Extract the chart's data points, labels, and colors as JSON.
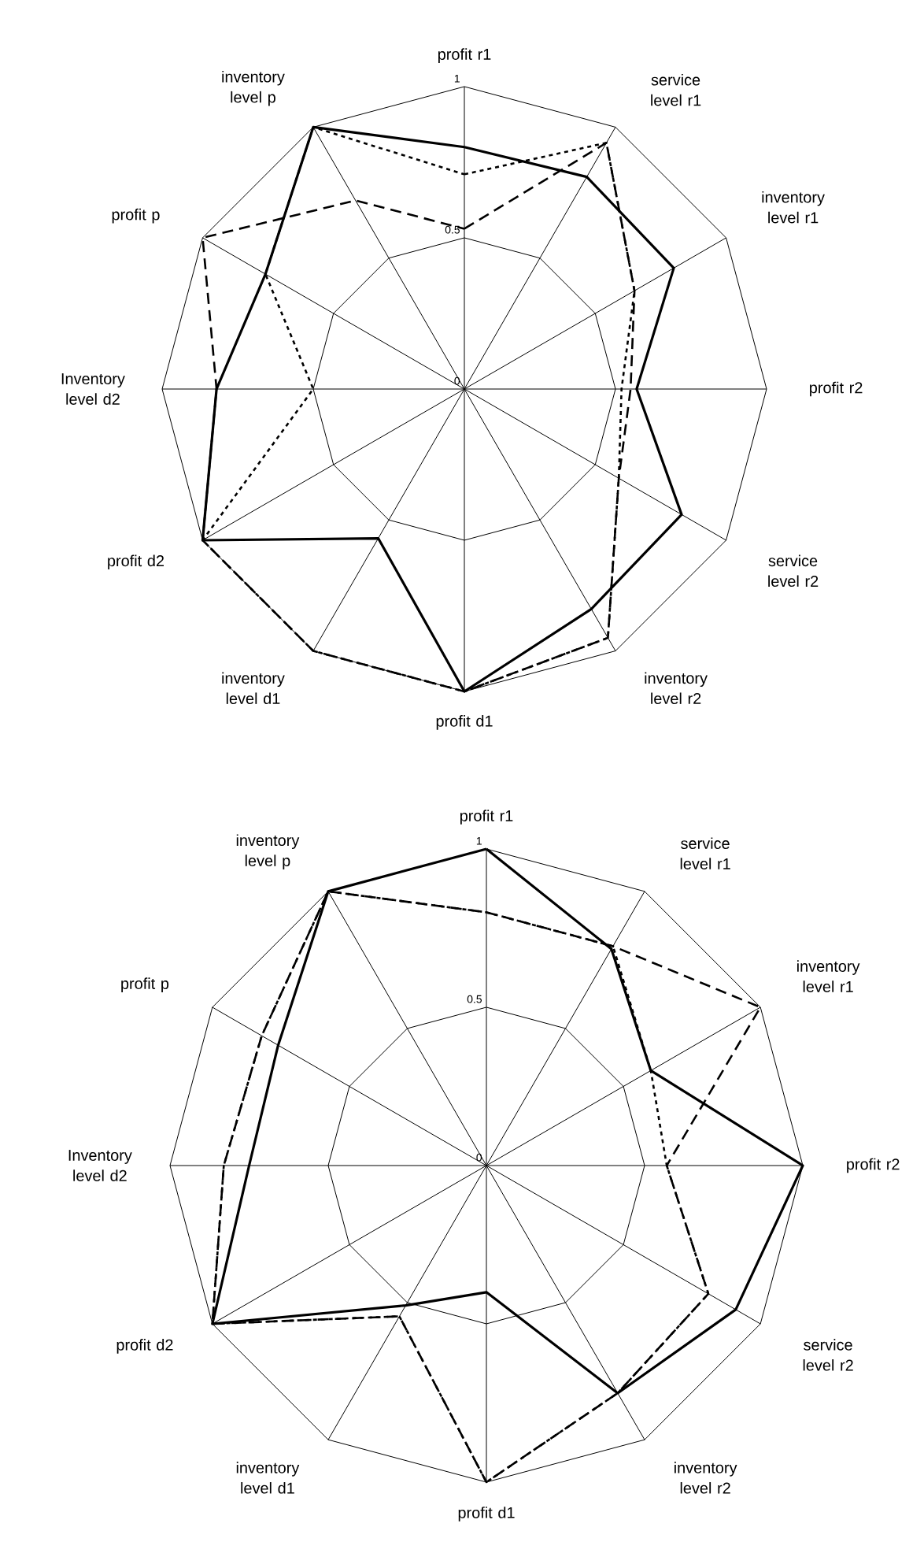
{
  "chart_data": [
    {
      "type": "radar",
      "categories": [
        "profit r1",
        "service level r1",
        "inventory level r1",
        "profit r2",
        "service level r2",
        "inventory level r2",
        "profit d1",
        "inventory level d1",
        "profit d2",
        "Inventory level d2",
        "profit p",
        "inventory level p"
      ],
      "ylim": [
        0,
        1
      ],
      "yticks": [
        0,
        0.5,
        1
      ],
      "grid": true,
      "series": [
        {
          "color": "#000000",
          "line_style": "solid",
          "values": [
            0.8,
            0.81,
            0.8,
            0.57,
            0.83,
            0.84,
            1.0,
            0.57,
            1.0,
            0.82,
            0.76,
            1.0
          ]
        },
        {
          "color": "#000000",
          "line_style": "dashed",
          "values": [
            0.53,
            0.94,
            0.65,
            0.55,
            0.59,
            0.95,
            1.0,
            1.0,
            1.0,
            0.82,
            1.0,
            0.72
          ]
        },
        {
          "color": "#000000",
          "line_style": "dotted",
          "values": [
            0.71,
            0.94,
            0.65,
            0.52,
            0.59,
            0.95,
            1.0,
            1.0,
            1.0,
            0.5,
            0.76,
            1.0
          ]
        }
      ]
    },
    {
      "type": "radar",
      "categories": [
        "profit r1",
        "service level r1",
        "inventory level r1",
        "profit r2",
        "service level r2",
        "inventory level r2",
        "profit d1",
        "inventory level d1",
        "profit d2",
        "Inventory level d2",
        "profit p",
        "inventory level p"
      ],
      "ylim": [
        0,
        1
      ],
      "yticks": [
        0,
        0.5,
        1
      ],
      "grid": true,
      "series": [
        {
          "color": "#000000",
          "line_style": "solid",
          "values": [
            1.0,
            0.79,
            0.6,
            1.0,
            0.91,
            0.83,
            0.4,
            0.51,
            1.0,
            0.75,
            0.76,
            1.0
          ]
        },
        {
          "color": "#000000",
          "line_style": "dashed",
          "values": [
            0.8,
            0.8,
            1.0,
            0.57,
            0.81,
            0.83,
            1.0,
            0.55,
            1.0,
            0.83,
            0.82,
            1.0
          ]
        },
        {
          "color": "#000000",
          "line_style": "dotted",
          "values": [
            0.8,
            0.8,
            0.6,
            0.57,
            0.81,
            0.83,
            1.0,
            0.55,
            1.0,
            0.83,
            0.82,
            1.0
          ]
        }
      ]
    }
  ]
}
